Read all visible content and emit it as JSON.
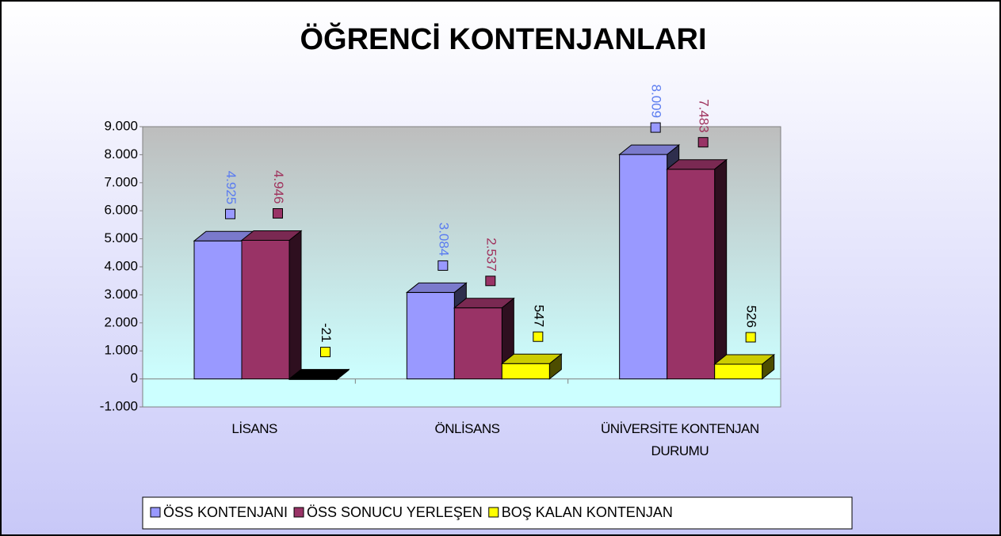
{
  "chart_data": {
    "type": "bar3d",
    "title": "ÖĞRENCİ KONTENJANLARI",
    "categories": [
      "LİSANS",
      "ÖNLİSANS",
      "ÜNİVERSİTE KONTENJAN DURUMU"
    ],
    "series": [
      {
        "name": "ÖSS KONTENJANI",
        "color": "#9999ff",
        "values": [
          4925,
          3084,
          8009
        ],
        "value_labels": [
          "4.925",
          "3.084",
          "8.009"
        ],
        "label_color": "#5b7cf0"
      },
      {
        "name": "ÖSS SONUCU YERLEŞEN",
        "color": "#993366",
        "values": [
          4946,
          2537,
          7483
        ],
        "value_labels": [
          "4.946",
          "2.537",
          "7.483"
        ],
        "label_color": "#a0345e"
      },
      {
        "name": "BOŞ KALAN KONTENJAN",
        "color": "#ffff00",
        "values": [
          -21,
          547,
          526
        ],
        "label_color": "#000000"
      }
    ],
    "ylim": [
      -1000,
      9000
    ],
    "yticks": [
      {
        "value": -1000,
        "label": "-1.000"
      },
      0,
      {
        "value": 1000,
        "label": "1.000"
      },
      {
        "value": 2000,
        "label": "2.000"
      },
      {
        "value": 3000,
        "label": "3.000"
      },
      {
        "value": 4000,
        "label": "4.000"
      },
      {
        "value": 5000,
        "label": "5.000"
      },
      {
        "value": 6000,
        "label": "6.000"
      },
      {
        "value": 7000,
        "label": "7.000"
      },
      {
        "value": 8000,
        "label": "8.000"
      },
      {
        "value": 9000,
        "label": "9.000"
      }
    ],
    "legend": "bottom"
  }
}
